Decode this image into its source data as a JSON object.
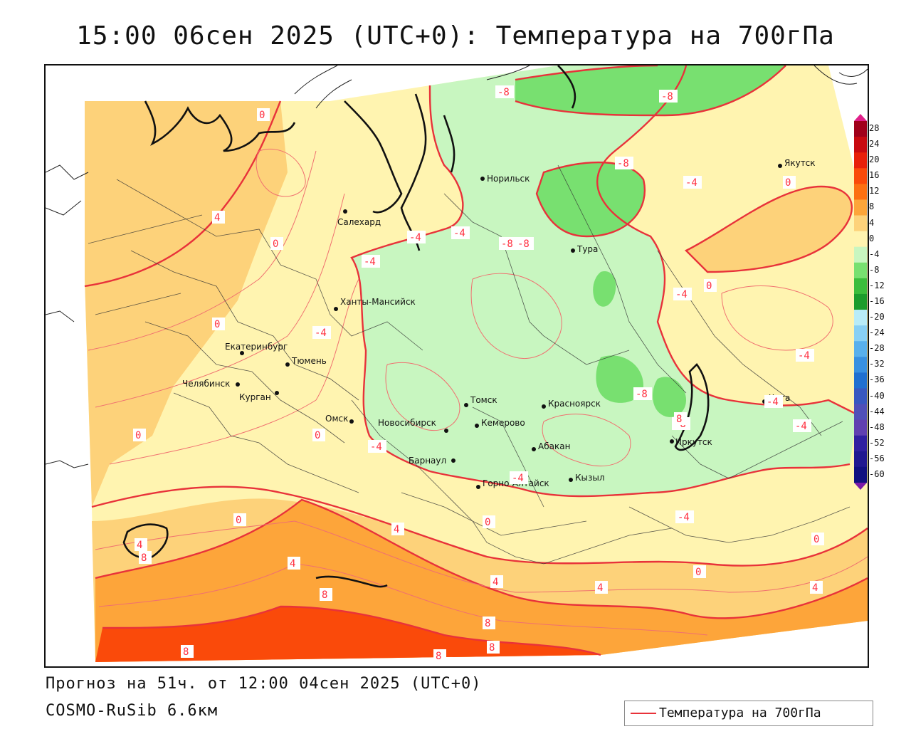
{
  "title": "15:00 06сен 2025 (UTC+0): Температура на 700гПа",
  "footer": {
    "forecast": "Прогноз на 51ч. от 12:00 04сен 2025 (UTC+0)",
    "model": "COSMO-RuSib 6.6км"
  },
  "legend": {
    "label": "Температура на 700гПа",
    "color": "#e8323a"
  },
  "colorbar": {
    "labels": [
      "28",
      "24",
      "20",
      "16",
      "12",
      "8",
      "4",
      "0",
      "-4",
      "-8",
      "-12",
      "-16",
      "-20",
      "-24",
      "-28",
      "-32",
      "-36",
      "-40",
      "-44",
      "-48",
      "-52",
      "-56",
      "-60"
    ],
    "colors": [
      "#a0001a",
      "#c80a10",
      "#e8200a",
      "#fa4a0a",
      "#fc7012",
      "#fda53a",
      "#fdd27a",
      "#fff4b0",
      "#c8f6c0",
      "#78e070",
      "#3cbd3c",
      "#1c9c2c",
      "#b8ecf8",
      "#88d0f4",
      "#58b0ec",
      "#3890e0",
      "#2070d0",
      "#3858c0",
      "#5050b8",
      "#6040b0",
      "#3020a0",
      "#201890",
      "#101080"
    ]
  },
  "cities": [
    {
      "name": "Норильск"
    },
    {
      "name": "Якутск"
    },
    {
      "name": "Салехард"
    },
    {
      "name": "Тура"
    },
    {
      "name": "Ханты-Мансийск"
    },
    {
      "name": "Екатеринбург"
    },
    {
      "name": "Тюмень"
    },
    {
      "name": "Челябинск"
    },
    {
      "name": "Курган"
    },
    {
      "name": "Томск"
    },
    {
      "name": "Красноярск"
    },
    {
      "name": "Омск"
    },
    {
      "name": "Новосибирск"
    },
    {
      "name": "Кемерово"
    },
    {
      "name": "Абакан"
    },
    {
      "name": "Барнаул"
    },
    {
      "name": "Горно-Алтайск"
    },
    {
      "name": "Кызыл"
    },
    {
      "name": "Иркутск"
    },
    {
      "name": "Чита"
    }
  ],
  "isolines": [
    "-8",
    "-8",
    "-8",
    "-4",
    "-4",
    "-4",
    "-4",
    "-4",
    "-8",
    "-8",
    "-4",
    "-4",
    "-4",
    "-4",
    "-8",
    "-8",
    "-4",
    "-4",
    "-4",
    "0",
    "0",
    "0",
    "0",
    "0",
    "0",
    "0",
    "0",
    "0",
    "0",
    "0",
    "4",
    "4",
    "4",
    "4",
    "4",
    "4",
    "4",
    "8",
    "8",
    "8",
    "8",
    "8",
    "8",
    "8"
  ]
}
